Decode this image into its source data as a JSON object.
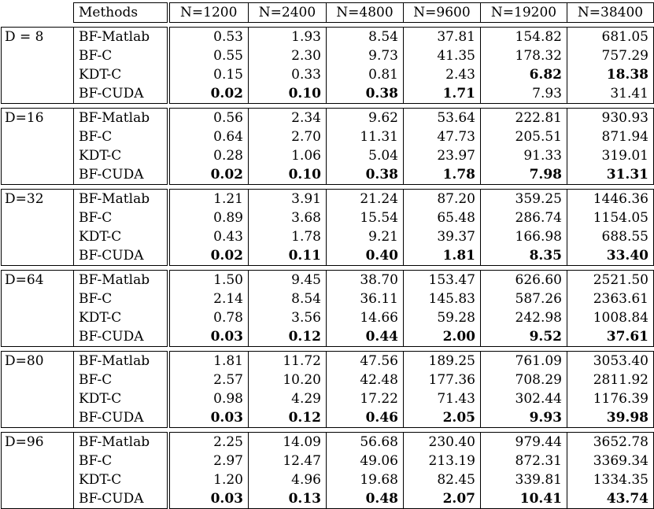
{
  "table": {
    "header": [
      "Methods",
      "N=1200",
      "N=2400",
      "N=4800",
      "N=9600",
      "N=19200",
      "N=38400"
    ],
    "groups": [
      {
        "label": "D = 8",
        "rows": [
          {
            "method": "BF-Matlab",
            "values": [
              "0.53",
              "1.93",
              "8.54",
              "37.81",
              "154.82",
              "681.05"
            ]
          },
          {
            "method": "BF-C",
            "values": [
              "0.55",
              "2.30",
              "9.73",
              "41.35",
              "178.32",
              "757.29"
            ]
          },
          {
            "method": "KDT-C",
            "values": [
              "0.15",
              "0.33",
              "0.81",
              "2.43",
              "6.82",
              "18.38"
            ]
          },
          {
            "method": "BF-CUDA",
            "values": [
              "0.02",
              "0.10",
              "0.38",
              "1.71",
              "7.93",
              "31.41"
            ]
          }
        ]
      },
      {
        "label": "D=16",
        "rows": [
          {
            "method": "BF-Matlab",
            "values": [
              "0.56",
              "2.34",
              "9.62",
              "53.64",
              "222.81",
              "930.93"
            ]
          },
          {
            "method": "BF-C",
            "values": [
              "0.64",
              "2.70",
              "11.31",
              "47.73",
              "205.51",
              "871.94"
            ]
          },
          {
            "method": "KDT-C",
            "values": [
              "0.28",
              "1.06",
              "5.04",
              "23.97",
              "91.33",
              "319.01"
            ]
          },
          {
            "method": "BF-CUDA",
            "values": [
              "0.02",
              "0.10",
              "0.38",
              "1.78",
              "7.98",
              "31.31"
            ]
          }
        ]
      },
      {
        "label": "D=32",
        "rows": [
          {
            "method": "BF-Matlab",
            "values": [
              "1.21",
              "3.91",
              "21.24",
              "87.20",
              "359.25",
              "1446.36"
            ]
          },
          {
            "method": "BF-C",
            "values": [
              "0.89",
              "3.68",
              "15.54",
              "65.48",
              "286.74",
              "1154.05"
            ]
          },
          {
            "method": "KDT-C",
            "values": [
              "0.43",
              "1.78",
              "9.21",
              "39.37",
              "166.98",
              "688.55"
            ]
          },
          {
            "method": "BF-CUDA",
            "values": [
              "0.02",
              "0.11",
              "0.40",
              "1.81",
              "8.35",
              "33.40"
            ]
          }
        ]
      },
      {
        "label": "D=64",
        "rows": [
          {
            "method": "BF-Matlab",
            "values": [
              "1.50",
              "9.45",
              "38.70",
              "153.47",
              "626.60",
              "2521.50"
            ]
          },
          {
            "method": "BF-C",
            "values": [
              "2.14",
              "8.54",
              "36.11",
              "145.83",
              "587.26",
              "2363.61"
            ]
          },
          {
            "method": "KDT-C",
            "values": [
              "0.78",
              "3.56",
              "14.66",
              "59.28",
              "242.98",
              "1008.84"
            ]
          },
          {
            "method": "BF-CUDA",
            "values": [
              "0.03",
              "0.12",
              "0.44",
              "2.00",
              "9.52",
              "37.61"
            ]
          }
        ]
      },
      {
        "label": "D=80",
        "rows": [
          {
            "method": "BF-Matlab",
            "values": [
              "1.81",
              "11.72",
              "47.56",
              "189.25",
              "761.09",
              "3053.40"
            ]
          },
          {
            "method": "BF-C",
            "values": [
              "2.57",
              "10.20",
              "42.48",
              "177.36",
              "708.29",
              "2811.92"
            ]
          },
          {
            "method": "KDT-C",
            "values": [
              "0.98",
              "4.29",
              "17.22",
              "71.43",
              "302.44",
              "1176.39"
            ]
          },
          {
            "method": "BF-CUDA",
            "values": [
              "0.03",
              "0.12",
              "0.46",
              "2.05",
              "9.93",
              "39.98"
            ]
          }
        ]
      },
      {
        "label": "D=96",
        "rows": [
          {
            "method": "BF-Matlab",
            "values": [
              "2.25",
              "14.09",
              "56.68",
              "230.40",
              "979.44",
              "3652.78"
            ]
          },
          {
            "method": "BF-C",
            "values": [
              "2.97",
              "12.47",
              "49.06",
              "213.19",
              "872.31",
              "3369.34"
            ]
          },
          {
            "method": "KDT-C",
            "values": [
              "1.20",
              "4.96",
              "19.68",
              "82.45",
              "339.81",
              "1334.35"
            ]
          },
          {
            "method": "BF-CUDA",
            "values": [
              "0.03",
              "0.13",
              "0.48",
              "2.07",
              "10.41",
              "43.74"
            ]
          }
        ]
      }
    ]
  }
}
